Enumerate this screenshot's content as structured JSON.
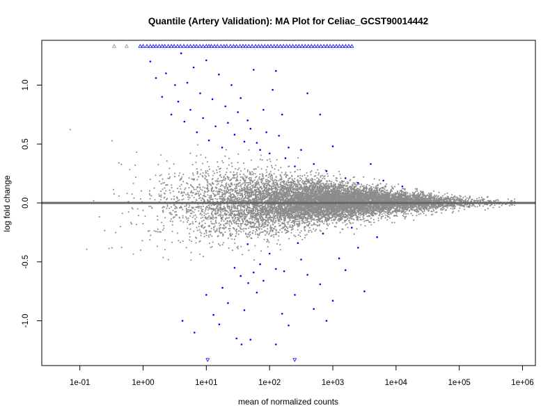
{
  "chart_data": {
    "type": "scatter",
    "title": "Quantile (Artery Validation): MA Plot for Celiac_GCST90014442",
    "xlabel": "mean of normalized counts",
    "ylabel": "log fold change",
    "x_scale": "log10",
    "xlim": [
      0.025,
      1600000
    ],
    "ylim": [
      -1.38,
      1.38
    ],
    "x_ticks": [
      {
        "value": 0.1,
        "label": "1e-01"
      },
      {
        "value": 1,
        "label": "1e+00"
      },
      {
        "value": 10,
        "label": "1e+01"
      },
      {
        "value": 100,
        "label": "1e+02"
      },
      {
        "value": 1000,
        "label": "1e+03"
      },
      {
        "value": 10000,
        "label": "1e+04"
      },
      {
        "value": 100000,
        "label": "1e+05"
      },
      {
        "value": 1000000,
        "label": "1e+06"
      }
    ],
    "y_ticks": [
      {
        "value": -1.0,
        "label": "-1.0"
      },
      {
        "value": -0.5,
        "label": "-0.5"
      },
      {
        "value": 0.0,
        "label": "0.0"
      },
      {
        "value": 0.5,
        "label": "0.5"
      },
      {
        "value": 1.0,
        "label": "1.0"
      }
    ],
    "reference_line": {
      "y": 0,
      "color": "#666666"
    },
    "colors": {
      "not_significant": "#8c8c8c",
      "significant": "#0000ff",
      "line": "#666666"
    },
    "series": [
      {
        "color": "#0000ff",
        "points": [
          [
            1.3,
            1.2
          ],
          [
            1.6,
            1.06
          ],
          [
            2.0,
            0.9
          ],
          [
            2.3,
            1.1
          ],
          [
            2.8,
            0.75
          ],
          [
            3.2,
            1.0
          ],
          [
            3.6,
            0.86
          ],
          [
            4.0,
            1.27
          ],
          [
            4.5,
            0.69
          ],
          [
            5.0,
            1.02
          ],
          [
            5.6,
            0.79
          ],
          [
            6.3,
            1.15
          ],
          [
            7.1,
            0.6
          ],
          [
            8.0,
            0.93
          ],
          [
            8.9,
            0.72
          ],
          [
            10,
            1.21
          ],
          [
            11,
            0.53
          ],
          [
            12.5,
            0.88
          ],
          [
            14,
            0.65
          ],
          [
            15.8,
            1.09
          ],
          [
            17.8,
            0.47
          ],
          [
            20,
            0.82
          ],
          [
            22,
            0.68
          ],
          [
            25,
            1.0
          ],
          [
            28,
            0.58
          ],
          [
            31.6,
            0.77
          ],
          [
            35,
            0.89
          ],
          [
            40,
            0.52
          ],
          [
            45,
            0.7
          ],
          [
            50,
            0.63
          ],
          [
            56,
            1.13
          ],
          [
            63,
            0.51
          ],
          [
            71,
            0.45
          ],
          [
            80,
            0.79
          ],
          [
            89,
            0.6
          ],
          [
            100,
            0.42
          ],
          [
            112,
            0.96
          ],
          [
            126,
            1.12
          ],
          [
            141,
            0.57
          ],
          [
            158,
            0.75
          ],
          [
            178,
            0.38
          ],
          [
            200,
            0.47
          ],
          [
            251,
            0.31
          ],
          [
            316,
            0.45
          ],
          [
            398,
            0.93
          ],
          [
            501,
            0.33
          ],
          [
            631,
            0.75
          ],
          [
            794,
            0.27
          ],
          [
            1000,
            0.48
          ],
          [
            1585,
            0.21
          ],
          [
            2512,
            0.17
          ],
          [
            3981,
            0.33
          ],
          [
            6310,
            0.19
          ],
          [
            12589,
            0.14
          ],
          [
            18,
            -0.72
          ],
          [
            22,
            -0.85
          ],
          [
            28,
            -0.55
          ],
          [
            35,
            -0.62
          ],
          [
            40,
            -0.91
          ],
          [
            46,
            -0.68
          ],
          [
            50,
            -1.16
          ],
          [
            56,
            -0.59
          ],
          [
            63,
            -0.76
          ],
          [
            71,
            -0.52
          ],
          [
            80,
            -0.66
          ],
          [
            100,
            -0.43
          ],
          [
            126,
            -0.56
          ],
          [
            158,
            -0.94
          ],
          [
            200,
            -1.04
          ],
          [
            251,
            -0.78
          ],
          [
            316,
            -0.48
          ],
          [
            398,
            -0.61
          ],
          [
            501,
            -0.9
          ],
          [
            631,
            -0.69
          ],
          [
            794,
            -1.0
          ],
          [
            1000,
            -0.83
          ],
          [
            1259,
            -0.47
          ],
          [
            1585,
            -0.57
          ],
          [
            2512,
            -0.38
          ],
          [
            3162,
            -0.75
          ],
          [
            5012,
            -0.29
          ],
          [
            10,
            -0.78
          ],
          [
            13,
            -0.95
          ],
          [
            16,
            -1.03
          ],
          [
            4.2,
            -1.0
          ],
          [
            6.5,
            -1.1
          ],
          [
            30,
            -1.15
          ],
          [
            36,
            -1.2
          ],
          [
            126,
            -1.2
          ],
          [
            170,
            -0.58
          ],
          [
            280,
            -0.34
          ],
          [
            700,
            -0.26
          ],
          [
            2000,
            -0.21
          ],
          [
            45,
            -0.35
          ]
        ]
      }
    ],
    "capped_points": {
      "color": "#0000ff",
      "marker": "triangle",
      "top_y": 1.33,
      "bottom_y": -1.33,
      "top_x": [
        0.35,
        0.55,
        0.9,
        1.0,
        1.15,
        1.3,
        1.45,
        1.6,
        1.8,
        2.0,
        2.2,
        2.5,
        2.8,
        3.1,
        3.5,
        3.9,
        4.4,
        5.0,
        5.6,
        6.3,
        7.0,
        7.9,
        8.9,
        10,
        11,
        12,
        13.5,
        15,
        17,
        19,
        21,
        24,
        27,
        30,
        34,
        38,
        42,
        47,
        53,
        60,
        67,
        75,
        84,
        94,
        105,
        118,
        132,
        148,
        166,
        186,
        208,
        233,
        261,
        292,
        327,
        366,
        410,
        460,
        515,
        577,
        646,
        723,
        810,
        907,
        1016,
        1138,
        1274,
        1427,
        1598,
        1790,
        2005
      ],
      "bottom_x": [
        10.5,
        250
      ]
    },
    "background_cloud": {
      "color": "#8c8c8c",
      "count": 11000,
      "log10_x_range": [
        -1.3,
        5.9
      ],
      "log10_x_center": 2.9,
      "log10_x_spread": 1.05,
      "lfc_spread_at_low_counts": 0.5,
      "lfc_spread_at_high_counts": 0.03,
      "lfc_clip": 1.3
    }
  }
}
